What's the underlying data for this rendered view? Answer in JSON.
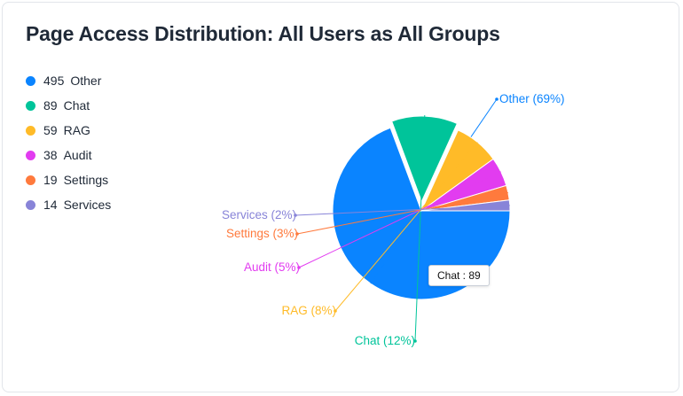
{
  "card": {
    "title": "Page Access Distribution: All Users as All Groups"
  },
  "chart_data": {
    "type": "pie",
    "title": "Page Access Distribution: All Users as All Groups",
    "categories": [
      "Other",
      "Chat",
      "RAG",
      "Audit",
      "Settings",
      "Services"
    ],
    "values": [
      495,
      89,
      59,
      38,
      19,
      14
    ],
    "percent_labels": [
      "Other (69%)",
      "Chat (12%)",
      "RAG (8%)",
      "Audit (5%)",
      "Settings (3%)",
      "Services (2%)"
    ],
    "colors": [
      "#0a84ff",
      "#00c49a",
      "#ffbb28",
      "#e23cf0",
      "#ff7a3d",
      "#8884d8"
    ],
    "legend": [
      {
        "count": "495",
        "label": "Other"
      },
      {
        "count": "89",
        "label": "Chat"
      },
      {
        "count": "59",
        "label": "RAG"
      },
      {
        "count": "38",
        "label": "Audit"
      },
      {
        "count": "19",
        "label": "Settings"
      },
      {
        "count": "14",
        "label": "Services"
      }
    ],
    "legend_position": "top-left",
    "active_slice": "Chat"
  },
  "tooltip": {
    "text": "Chat : 89"
  }
}
